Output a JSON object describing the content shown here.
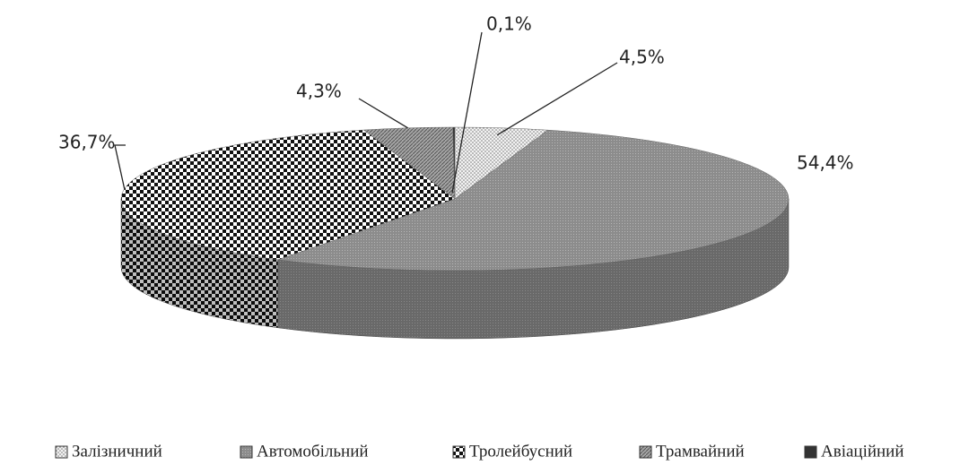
{
  "chart_data": {
    "type": "pie3d",
    "categories": [
      "Залізничний",
      "Автомобільний",
      "Тролейбусний",
      "Трамвайний",
      "Авіаційний"
    ],
    "values": [
      4.5,
      54.4,
      36.7,
      4.3,
      0.1
    ],
    "value_labels": [
      "4,5%",
      "54,4%",
      "36,7%",
      "4,3%",
      "0,1%"
    ],
    "colors": [
      "#f2f2f2",
      "#8c8c8c",
      "#ffffff",
      "#a6a6a6",
      "#333333"
    ],
    "legend": "bottom"
  }
}
